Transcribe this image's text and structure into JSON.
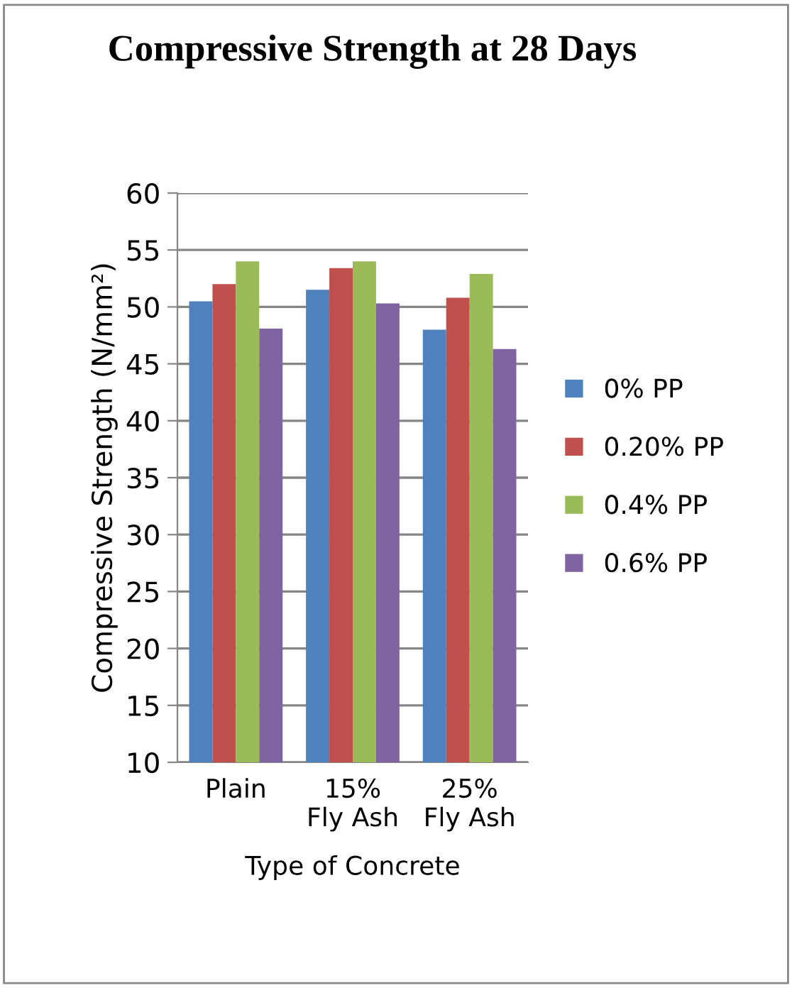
{
  "chart_data": {
    "type": "bar",
    "title": "Compressive Strength at 28 Days",
    "xlabel": "Type of Concrete",
    "ylabel": "Compressive Strength (N/mm²)",
    "categories": [
      "Plain",
      "15%\nFly Ash",
      "25%\nFly Ash"
    ],
    "series": [
      {
        "name": "0% PP",
        "color": "#4f81bd",
        "values": [
          50.5,
          51.5,
          48.0
        ]
      },
      {
        "name": "0.20% PP",
        "color": "#c0504d",
        "values": [
          52.0,
          53.4,
          50.8
        ]
      },
      {
        "name": "0.4% PP",
        "color": "#9bbb59",
        "values": [
          54.0,
          54.0,
          52.9
        ]
      },
      {
        "name": "0.6% PP",
        "color": "#8064a2",
        "values": [
          48.1,
          50.3,
          46.3
        ]
      }
    ],
    "ylim": [
      10,
      60
    ],
    "yticks": [
      10,
      15,
      20,
      25,
      30,
      35,
      40,
      45,
      50,
      55,
      60
    ],
    "grid": "y",
    "legend": "right"
  }
}
